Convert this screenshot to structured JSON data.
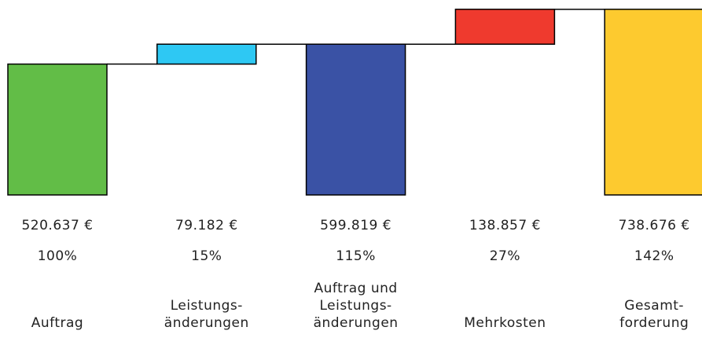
{
  "chart_data": {
    "type": "waterfall",
    "categories": [
      "Auftrag",
      "Leistungs-\nänderungen",
      "Auftrag und\nLeistungs-\nänderungen",
      "Mehrkosten",
      "Gesamt-\nforderung"
    ],
    "measure": [
      "total",
      "relative",
      "total",
      "relative",
      "total"
    ],
    "values": [
      520637,
      79182,
      599819,
      138857,
      738676
    ],
    "value_labels": [
      "520.637 €",
      "79.182 €",
      "599.819 €",
      "138.857 €",
      "738.676 €"
    ],
    "percentages": [
      100,
      15,
      115,
      27,
      142
    ],
    "percentage_labels": [
      "100%",
      "15%",
      "115%",
      "27%",
      "142%"
    ],
    "colors": [
      "#62bd47",
      "#2ec8f3",
      "#3a52a5",
      "#ef3a2e",
      "#fdca2f"
    ],
    "ylim": [
      0,
      760000
    ]
  }
}
